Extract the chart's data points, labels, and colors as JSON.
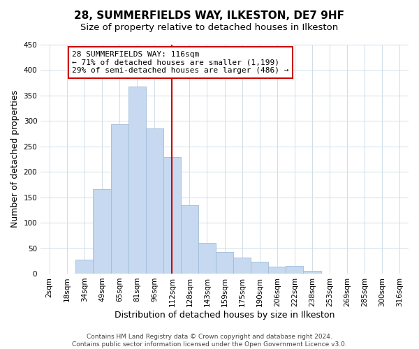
{
  "title": "28, SUMMERFIELDS WAY, ILKESTON, DE7 9HF",
  "subtitle": "Size of property relative to detached houses in Ilkeston",
  "xlabel": "Distribution of detached houses by size in Ilkeston",
  "ylabel": "Number of detached properties",
  "bar_labels": [
    "2sqm",
    "18sqm",
    "34sqm",
    "49sqm",
    "65sqm",
    "81sqm",
    "96sqm",
    "112sqm",
    "128sqm",
    "143sqm",
    "159sqm",
    "175sqm",
    "190sqm",
    "206sqm",
    "222sqm",
    "238sqm",
    "253sqm",
    "269sqm",
    "285sqm",
    "300sqm",
    "316sqm"
  ],
  "bar_heights": [
    0,
    0,
    28,
    166,
    293,
    367,
    285,
    229,
    135,
    61,
    43,
    31,
    23,
    14,
    15,
    5,
    0,
    0,
    0,
    0,
    0
  ],
  "bar_color": "#c6d9f0",
  "bar_edge_color": "#a0bcd8",
  "vline_x": 7,
  "vline_color": "#cc0000",
  "annotation_title": "28 SUMMERFIELDS WAY: 116sqm",
  "annotation_line1": "← 71% of detached houses are smaller (1,199)",
  "annotation_line2": "29% of semi-detached houses are larger (486) →",
  "annotation_box_color": "#ffffff",
  "annotation_box_edge": "#cc0000",
  "ylim": [
    0,
    450
  ],
  "yticks": [
    0,
    50,
    100,
    150,
    200,
    250,
    300,
    350,
    400,
    450
  ],
  "footer_line1": "Contains HM Land Registry data © Crown copyright and database right 2024.",
  "footer_line2": "Contains public sector information licensed under the Open Government Licence v3.0.",
  "title_fontsize": 11,
  "subtitle_fontsize": 9.5,
  "axis_label_fontsize": 9,
  "tick_fontsize": 7.5,
  "annotation_fontsize": 8,
  "footer_fontsize": 6.5
}
